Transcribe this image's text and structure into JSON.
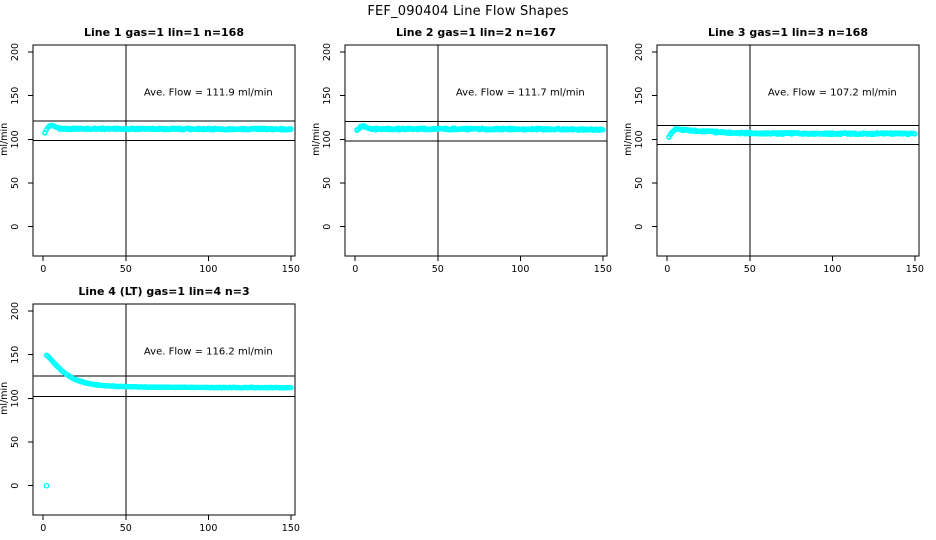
{
  "title": "FEF_090404  Line Flow Shapes",
  "marker_color": "#00FFFF",
  "axis_color": "#000000",
  "chart_data": [
    {
      "type": "scatter",
      "panel_title": "Line 1 gas=1 lin=1 n=168",
      "annotation": "Ave. Flow =  111.9  ml/min",
      "ave_flow_ml_min": 111.9,
      "n": 168,
      "ylabel": "ml/min",
      "x_ticks": [
        0,
        50,
        100,
        150
      ],
      "y_ticks": [
        0,
        50,
        100,
        150,
        200
      ],
      "xlim": [
        -6.2,
        152.5
      ],
      "ylim": [
        -33.5,
        208
      ],
      "vline_x": 50,
      "hlines": [
        120.9,
        98.5
      ],
      "jitter": 0.9,
      "passes": 2,
      "profile": [
        [
          1,
          108.0
        ],
        [
          2,
          110.8
        ],
        [
          3,
          113.6
        ],
        [
          4,
          115.2
        ],
        [
          5,
          115.5
        ],
        [
          6,
          115.0
        ],
        [
          7,
          114.2
        ],
        [
          8,
          113.4
        ],
        [
          9,
          112.8
        ],
        [
          10,
          112.4
        ],
        [
          12,
          112.1
        ],
        [
          15,
          112.0
        ],
        [
          20,
          112.1
        ],
        [
          30,
          112.2
        ],
        [
          40,
          112.2
        ],
        [
          50,
          112.1
        ],
        [
          60,
          112.0
        ],
        [
          80,
          111.9
        ],
        [
          100,
          111.8
        ],
        [
          115,
          111.7
        ],
        [
          130,
          111.9
        ],
        [
          150,
          111.5
        ]
      ],
      "extra_points": []
    },
    {
      "type": "scatter",
      "panel_title": "Line 2 gas=1 lin=2 n=167",
      "annotation": "Ave. Flow =  111.7  ml/min",
      "ave_flow_ml_min": 111.7,
      "n": 167,
      "ylabel": "ml/min",
      "x_ticks": [
        0,
        50,
        100,
        150
      ],
      "y_ticks": [
        0,
        50,
        100,
        150,
        200
      ],
      "xlim": [
        -6.2,
        152.5
      ],
      "ylim": [
        -33.5,
        208
      ],
      "vline_x": 50,
      "hlines": [
        120.6,
        98.3
      ],
      "jitter": 1.0,
      "passes": 2,
      "profile": [
        [
          1,
          110.4
        ],
        [
          2,
          111.6
        ],
        [
          3,
          113.8
        ],
        [
          4,
          115.0
        ],
        [
          5,
          115.1
        ],
        [
          6,
          114.5
        ],
        [
          7,
          113.6
        ],
        [
          8,
          112.9
        ],
        [
          10,
          112.2
        ],
        [
          12,
          111.9
        ],
        [
          15,
          111.8
        ],
        [
          20,
          111.9
        ],
        [
          30,
          112.0
        ],
        [
          50,
          111.9
        ],
        [
          70,
          111.8
        ],
        [
          100,
          111.7
        ],
        [
          125,
          111.6
        ],
        [
          150,
          111.3
        ]
      ],
      "extra_points": []
    },
    {
      "type": "scatter",
      "panel_title": "Line 3 gas=1 lin=3 n=168",
      "annotation": "Ave. Flow =  107.2  ml/min",
      "ave_flow_ml_min": 107.2,
      "n": 168,
      "ylabel": "ml/min",
      "x_ticks": [
        0,
        50,
        100,
        150
      ],
      "y_ticks": [
        0,
        50,
        100,
        150,
        200
      ],
      "xlim": [
        -6.2,
        152.5
      ],
      "ylim": [
        -33.5,
        208
      ],
      "vline_x": 50,
      "hlines": [
        115.8,
        94.3
      ],
      "jitter": 1.0,
      "passes": 2,
      "profile": [
        [
          1,
          102.8
        ],
        [
          2,
          105.5
        ],
        [
          3,
          108.5
        ],
        [
          4,
          110.6
        ],
        [
          5,
          111.4
        ],
        [
          6,
          111.6
        ],
        [
          7,
          111.5
        ],
        [
          8,
          111.2
        ],
        [
          10,
          110.8
        ],
        [
          13,
          110.3
        ],
        [
          16,
          109.9
        ],
        [
          20,
          109.4
        ],
        [
          25,
          108.9
        ],
        [
          30,
          108.4
        ],
        [
          35,
          108.0
        ],
        [
          40,
          107.6
        ],
        [
          45,
          107.3
        ],
        [
          50,
          107.1
        ],
        [
          60,
          106.9
        ],
        [
          70,
          106.8
        ],
        [
          85,
          106.7
        ],
        [
          100,
          106.6
        ],
        [
          120,
          106.6
        ],
        [
          135,
          106.6
        ],
        [
          150,
          106.3
        ]
      ],
      "extra_points": []
    },
    {
      "type": "scatter",
      "panel_title": "Line 4 (LT) gas=1 lin=4 n=3",
      "annotation": "Ave. Flow =  116.2  ml/min",
      "ave_flow_ml_min": 116.2,
      "n": 3,
      "ylabel": "ml/min",
      "x_ticks": [
        0,
        50,
        100,
        150
      ],
      "y_ticks": [
        0,
        50,
        100,
        150,
        200
      ],
      "xlim": [
        -6.2,
        152.5
      ],
      "ylim": [
        -33.5,
        208
      ],
      "vline_x": 50,
      "hlines": [
        125.5,
        102.3
      ],
      "jitter": 0.35,
      "passes": 2,
      "profile": [
        [
          2,
          149.5
        ],
        [
          3,
          148.0
        ],
        [
          4,
          146.0
        ],
        [
          5,
          143.8
        ],
        [
          6,
          141.6
        ],
        [
          7,
          139.5
        ],
        [
          8,
          137.5
        ],
        [
          9,
          135.6
        ],
        [
          10,
          133.8
        ],
        [
          11,
          132.1
        ],
        [
          12,
          130.5
        ],
        [
          13,
          129.0
        ],
        [
          14,
          127.6
        ],
        [
          15,
          126.3
        ],
        [
          16,
          125.1
        ],
        [
          17,
          124.0
        ],
        [
          18,
          123.0
        ],
        [
          19,
          122.1
        ],
        [
          20,
          121.3
        ],
        [
          22,
          119.9
        ],
        [
          24,
          118.7
        ],
        [
          26,
          117.7
        ],
        [
          28,
          116.9
        ],
        [
          30,
          116.2
        ],
        [
          33,
          115.4
        ],
        [
          36,
          114.8
        ],
        [
          40,
          114.2
        ],
        [
          45,
          113.7
        ],
        [
          50,
          113.4
        ],
        [
          55,
          113.2
        ],
        [
          60,
          113.0
        ],
        [
          70,
          112.8
        ],
        [
          80,
          112.7
        ],
        [
          90,
          112.6
        ],
        [
          100,
          112.5
        ],
        [
          115,
          112.4
        ],
        [
          130,
          112.4
        ],
        [
          150,
          112.2
        ]
      ],
      "extra_points": [
        [
          2,
          0
        ]
      ]
    }
  ]
}
